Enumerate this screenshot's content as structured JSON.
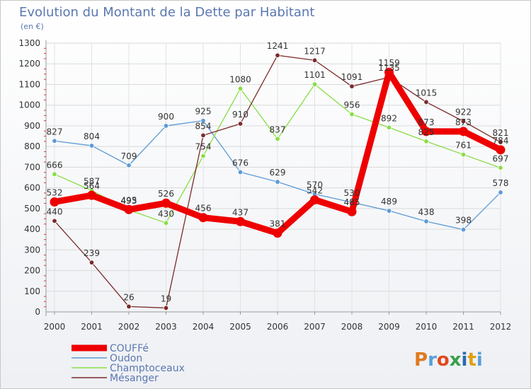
{
  "chart_data": {
    "type": "line",
    "title": "Evolution du Montant de la Dette par Habitant",
    "subtitle": "(en €)",
    "xlabel": "",
    "ylabel": "",
    "ylim": [
      0,
      1300
    ],
    "y_ticks": [
      0,
      100,
      200,
      300,
      400,
      500,
      600,
      700,
      800,
      900,
      1000,
      1100,
      1200,
      1300
    ],
    "categories": [
      "2000",
      "2001",
      "2002",
      "2003",
      "2004",
      "2005",
      "2006",
      "2007",
      "2008",
      "2009",
      "2010",
      "2011",
      "2012"
    ],
    "legend_position": "bottom-left",
    "series": [
      {
        "name": "COUFFé",
        "color": "#ee0000",
        "emphasis": true,
        "values": [
          532,
          564,
          495,
          526,
          456,
          437,
          381,
          542,
          485,
          1159,
          873,
          873,
          784
        ]
      },
      {
        "name": "Oudon",
        "color": "#5b9bd5",
        "emphasis": false,
        "values": [
          827,
          804,
          709,
          900,
          925,
          676,
          629,
          570,
          530,
          489,
          438,
          398,
          578
        ]
      },
      {
        "name": "Champtoceaux",
        "color": "#88dd44",
        "emphasis": false,
        "values": [
          666,
          587,
          493,
          430,
          754,
          1080,
          837,
          1101,
          956,
          892,
          825,
          761,
          697
        ]
      },
      {
        "name": "Mésanger",
        "color": "#7a2a2a",
        "emphasis": false,
        "values": [
          440,
          239,
          26,
          19,
          854,
          910,
          1241,
          1217,
          1091,
          1135,
          1015,
          922,
          821
        ]
      }
    ]
  },
  "branding": {
    "logo_text": "Proxiti"
  }
}
